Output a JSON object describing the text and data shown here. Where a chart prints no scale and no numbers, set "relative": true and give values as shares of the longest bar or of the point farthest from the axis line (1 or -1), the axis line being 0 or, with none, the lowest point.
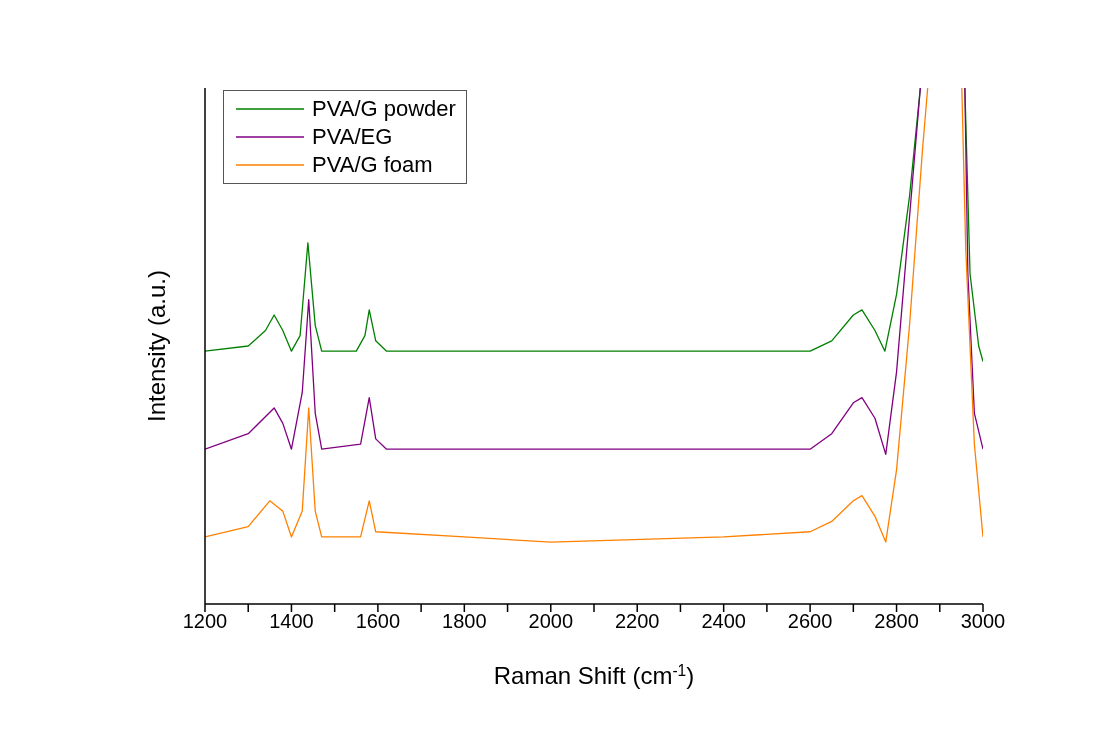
{
  "chart_data": {
    "type": "line",
    "relative": true,
    "xlabel": "Raman Shift (cm$^{-1}$)",
    "ylabel": "Intensity (a.u.)",
    "xlim": [
      1200,
      3000
    ],
    "xticks": [
      1200,
      {
        "value": 1300,
        "label": null
      },
      1400,
      {
        "value": 1500,
        "label": null
      },
      1600,
      {
        "value": 1700,
        "label": null
      },
      1800,
      {
        "value": 1900,
        "label": null
      },
      2000,
      {
        "value": 2100,
        "label": null
      },
      2200,
      {
        "value": 2300,
        "label": null
      },
      2400,
      {
        "value": 2500,
        "label": null
      },
      2600,
      {
        "value": 2700,
        "label": null
      },
      2800,
      {
        "value": 2900,
        "label": null
      },
      3000
    ],
    "grid": false,
    "legend": "top left",
    "marker": "none",
    "line_style": "solid",
    "series": [
      {
        "name": "PVA/G powder",
        "color": "#008000",
        "x": [
          1200,
          1300,
          1340,
          1360,
          1380,
          1400,
          1420,
          1438,
          1455,
          1470,
          1550,
          1570,
          1580,
          1595,
          1620,
          2000,
          2400,
          2600,
          2650,
          2700,
          2720,
          2750,
          2773,
          2800,
          2830,
          2855,
          2900,
          2958,
          2970,
          2990,
          3000
        ],
        "values": [
          0.49,
          0.5,
          0.53,
          0.56,
          0.53,
          0.49,
          0.52,
          0.7,
          0.54,
          0.49,
          0.49,
          0.52,
          0.57,
          0.51,
          0.49,
          0.49,
          0.49,
          0.49,
          0.51,
          0.56,
          0.57,
          0.53,
          0.49,
          0.6,
          0.79,
          1,
          null,
          1,
          0.64,
          0.5,
          0.47
        ]
      },
      {
        "name": "PVA/EG",
        "color": "#800080",
        "x": [
          1200,
          1300,
          1360,
          1380,
          1400,
          1425,
          1440,
          1455,
          1470,
          1560,
          1580,
          1595,
          1620,
          2000,
          2600,
          2650,
          2700,
          2720,
          2750,
          2775,
          2800,
          2830,
          2855,
          2900,
          2958,
          2965,
          2980,
          3000
        ],
        "values": [
          0.3,
          0.33,
          0.38,
          0.35,
          0.3,
          0.41,
          0.59,
          0.37,
          0.3,
          0.31,
          0.4,
          0.32,
          0.3,
          0.3,
          0.3,
          0.33,
          0.39,
          0.4,
          0.36,
          0.29,
          0.45,
          0.75,
          1,
          null,
          1,
          0.64,
          0.37,
          0.3
        ]
      },
      {
        "name": "PVA/G foam",
        "color": "#ff8000",
        "x": [
          1200,
          1300,
          1350,
          1380,
          1400,
          1425,
          1440,
          1455,
          1470,
          1560,
          1580,
          1595,
          1800,
          2000,
          2400,
          2600,
          2650,
          2700,
          2720,
          2750,
          2775,
          2800,
          2830,
          2860,
          2872,
          2900,
          2951,
          2960,
          2980,
          3000
        ],
        "values": [
          0.13,
          0.15,
          0.2,
          0.18,
          0.13,
          0.18,
          0.38,
          0.18,
          0.13,
          0.13,
          0.2,
          0.14,
          0.13,
          0.12,
          0.13,
          0.14,
          0.16,
          0.2,
          0.21,
          0.17,
          0.12,
          0.26,
          0.54,
          0.88,
          1,
          null,
          1,
          0.69,
          0.31,
          0.13
        ]
      }
    ]
  }
}
